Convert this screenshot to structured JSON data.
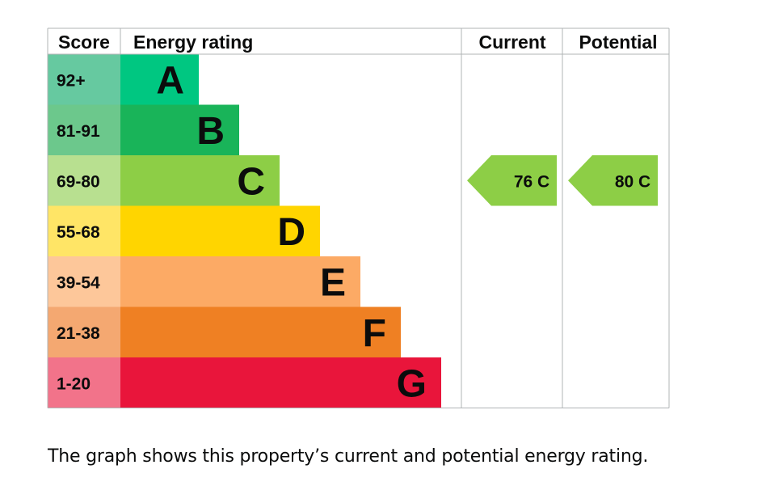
{
  "caption": "The graph shows this property’s current and potential energy rating.",
  "chart_data": {
    "type": "bar",
    "title": "",
    "headers": {
      "score": "Score",
      "rating": "Energy rating",
      "current": "Current",
      "potential": "Potential"
    },
    "bands": [
      {
        "letter": "A",
        "score": "92+",
        "color": "#008054",
        "score_bg": "#66c9a0",
        "bar": "#00c781",
        "min": 92,
        "max": 100
      },
      {
        "letter": "B",
        "score": "81-91",
        "color": "#19b459",
        "score_bg": "#6cc88c",
        "bar": "#19b459",
        "min": 81,
        "max": 91
      },
      {
        "letter": "C",
        "score": "69-80",
        "color": "#8dce46",
        "score_bg": "#b8e090",
        "bar": "#8dce46",
        "min": 69,
        "max": 80
      },
      {
        "letter": "D",
        "score": "55-68",
        "color": "#ffd500",
        "score_bg": "#ffe566",
        "bar": "#ffd500",
        "min": 55,
        "max": 68
      },
      {
        "letter": "E",
        "score": "39-54",
        "color": "#fcaa65",
        "score_bg": "#fdc79a",
        "bar": "#fcaa65",
        "min": 39,
        "max": 54
      },
      {
        "letter": "F",
        "score": "21-38",
        "color": "#ef8023",
        "score_bg": "#f4a871",
        "bar": "#ef8023",
        "min": 21,
        "max": 38
      },
      {
        "letter": "G",
        "score": "1-20",
        "color": "#e9153b",
        "score_bg": "#f2738a",
        "bar": "#e9153b",
        "min": 1,
        "max": 20
      }
    ],
    "current": {
      "value": 76,
      "band": "C",
      "label": "76  C",
      "color": "#8dce46"
    },
    "potential": {
      "value": 80,
      "band": "C",
      "label": "80  C",
      "color": "#8dce46"
    }
  }
}
